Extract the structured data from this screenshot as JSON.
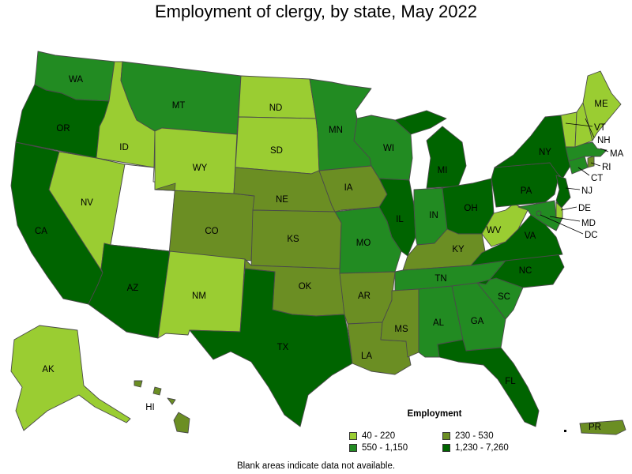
{
  "title": "Employment of clergy, by state, May 2022",
  "footnote": "Blank areas indicate data not available.",
  "colors": {
    "c1": "#9ACD32",
    "c2": "#6B8E23",
    "c3": "#228B22",
    "c4": "#006400",
    "na": "#ffffff",
    "border": "#4a4a4a"
  },
  "legend": {
    "title": "Employment",
    "items": [
      {
        "label": "40 - 220",
        "color": "#9ACD32"
      },
      {
        "label": "230 - 530",
        "color": "#6B8E23"
      },
      {
        "label": "550 - 1,150",
        "color": "#228B22"
      },
      {
        "label": "1,230 - 7,260",
        "color": "#006400"
      }
    ]
  },
  "states": {
    "WA": {
      "label": "WA",
      "bin": "c3"
    },
    "OR": {
      "label": "OR",
      "bin": "c4"
    },
    "CA": {
      "label": "CA",
      "bin": "c4"
    },
    "ID": {
      "label": "ID",
      "bin": "c1"
    },
    "NV": {
      "label": "NV",
      "bin": "c1"
    },
    "UT": {
      "label": "",
      "bin": "na"
    },
    "AZ": {
      "label": "AZ",
      "bin": "c4"
    },
    "MT": {
      "label": "MT",
      "bin": "c3"
    },
    "WY": {
      "label": "WY",
      "bin": "c1"
    },
    "CO": {
      "label": "CO",
      "bin": "c2"
    },
    "NM": {
      "label": "NM",
      "bin": "c1"
    },
    "ND": {
      "label": "ND",
      "bin": "c1"
    },
    "SD": {
      "label": "SD",
      "bin": "c1"
    },
    "NE": {
      "label": "NE",
      "bin": "c2"
    },
    "KS": {
      "label": "KS",
      "bin": "c2"
    },
    "OK": {
      "label": "OK",
      "bin": "c2"
    },
    "TX": {
      "label": "TX",
      "bin": "c4"
    },
    "MN": {
      "label": "MN",
      "bin": "c3"
    },
    "IA": {
      "label": "IA",
      "bin": "c2"
    },
    "MO": {
      "label": "MO",
      "bin": "c3"
    },
    "AR": {
      "label": "AR",
      "bin": "c2"
    },
    "LA": {
      "label": "LA",
      "bin": "c2"
    },
    "WI": {
      "label": "WI",
      "bin": "c3"
    },
    "IL": {
      "label": "IL",
      "bin": "c4"
    },
    "MI": {
      "label": "MI",
      "bin": "c4"
    },
    "IN": {
      "label": "IN",
      "bin": "c3"
    },
    "OH": {
      "label": "OH",
      "bin": "c4"
    },
    "KY": {
      "label": "KY",
      "bin": "c2"
    },
    "TN": {
      "label": "TN",
      "bin": "c3"
    },
    "MS": {
      "label": "MS",
      "bin": "c2"
    },
    "AL": {
      "label": "AL",
      "bin": "c3"
    },
    "GA": {
      "label": "GA",
      "bin": "c3"
    },
    "FL": {
      "label": "FL",
      "bin": "c4"
    },
    "SC": {
      "label": "SC",
      "bin": "c3"
    },
    "NC": {
      "label": "NC",
      "bin": "c4"
    },
    "VA": {
      "label": "VA",
      "bin": "c4"
    },
    "WV": {
      "label": "WV",
      "bin": "c1"
    },
    "PA": {
      "label": "PA",
      "bin": "c4"
    },
    "NY": {
      "label": "NY",
      "bin": "c4"
    },
    "NJ": {
      "label": "NJ",
      "bin": "c4"
    },
    "DE": {
      "label": "DE",
      "bin": "c1"
    },
    "MD": {
      "label": "MD",
      "bin": "c3"
    },
    "DC": {
      "label": "DC",
      "bin": "c3"
    },
    "CT": {
      "label": "CT",
      "bin": "c3"
    },
    "RI": {
      "label": "RI",
      "bin": "c2"
    },
    "MA": {
      "label": "MA",
      "bin": "c3"
    },
    "VT": {
      "label": "VT",
      "bin": "c1"
    },
    "NH": {
      "label": "NH",
      "bin": "c1"
    },
    "ME": {
      "label": "ME",
      "bin": "c1"
    },
    "AK": {
      "label": "AK",
      "bin": "c1"
    },
    "HI": {
      "label": "HI",
      "bin": "c2"
    },
    "PR": {
      "label": "PR",
      "bin": "c2"
    }
  }
}
